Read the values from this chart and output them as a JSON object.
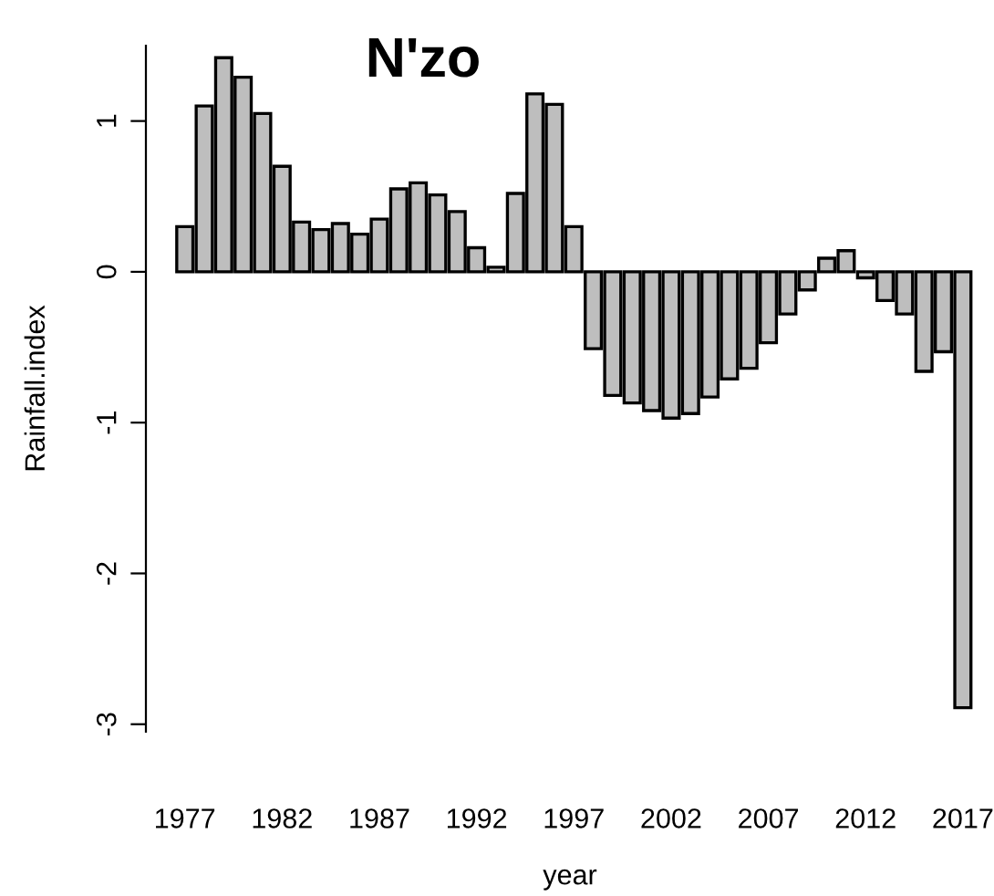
{
  "chart_data": {
    "type": "bar",
    "title": "N'zo",
    "xlabel": "year",
    "ylabel": "Rainfall.index",
    "categories": [
      "1977",
      null,
      null,
      null,
      null,
      "1982",
      null,
      null,
      null,
      null,
      "1987",
      null,
      null,
      null,
      null,
      "1992",
      null,
      null,
      null,
      null,
      "1997",
      null,
      null,
      null,
      null,
      "2002",
      null,
      null,
      null,
      null,
      "2007",
      null,
      null,
      null,
      null,
      "2012",
      null,
      null,
      null,
      null,
      "2017"
    ],
    "values": [
      0.3,
      1.1,
      1.42,
      1.29,
      1.05,
      0.7,
      0.33,
      0.28,
      0.32,
      0.25,
      0.35,
      0.55,
      0.59,
      0.51,
      0.4,
      0.16,
      0.03,
      0.52,
      1.18,
      1.11,
      0.3,
      -0.51,
      -0.82,
      -0.87,
      -0.92,
      -0.97,
      -0.94,
      -0.83,
      -0.71,
      -0.64,
      -0.47,
      -0.28,
      -0.12,
      0.09,
      0.14,
      -0.04,
      -0.19,
      -0.28,
      -0.66,
      -0.53,
      -2.89
    ],
    "color": "#bebebe",
    "ylim": [
      -3.05,
      1.5
    ],
    "yticks": [
      -3,
      -2,
      -1,
      0,
      1
    ],
    "grid": false
  }
}
